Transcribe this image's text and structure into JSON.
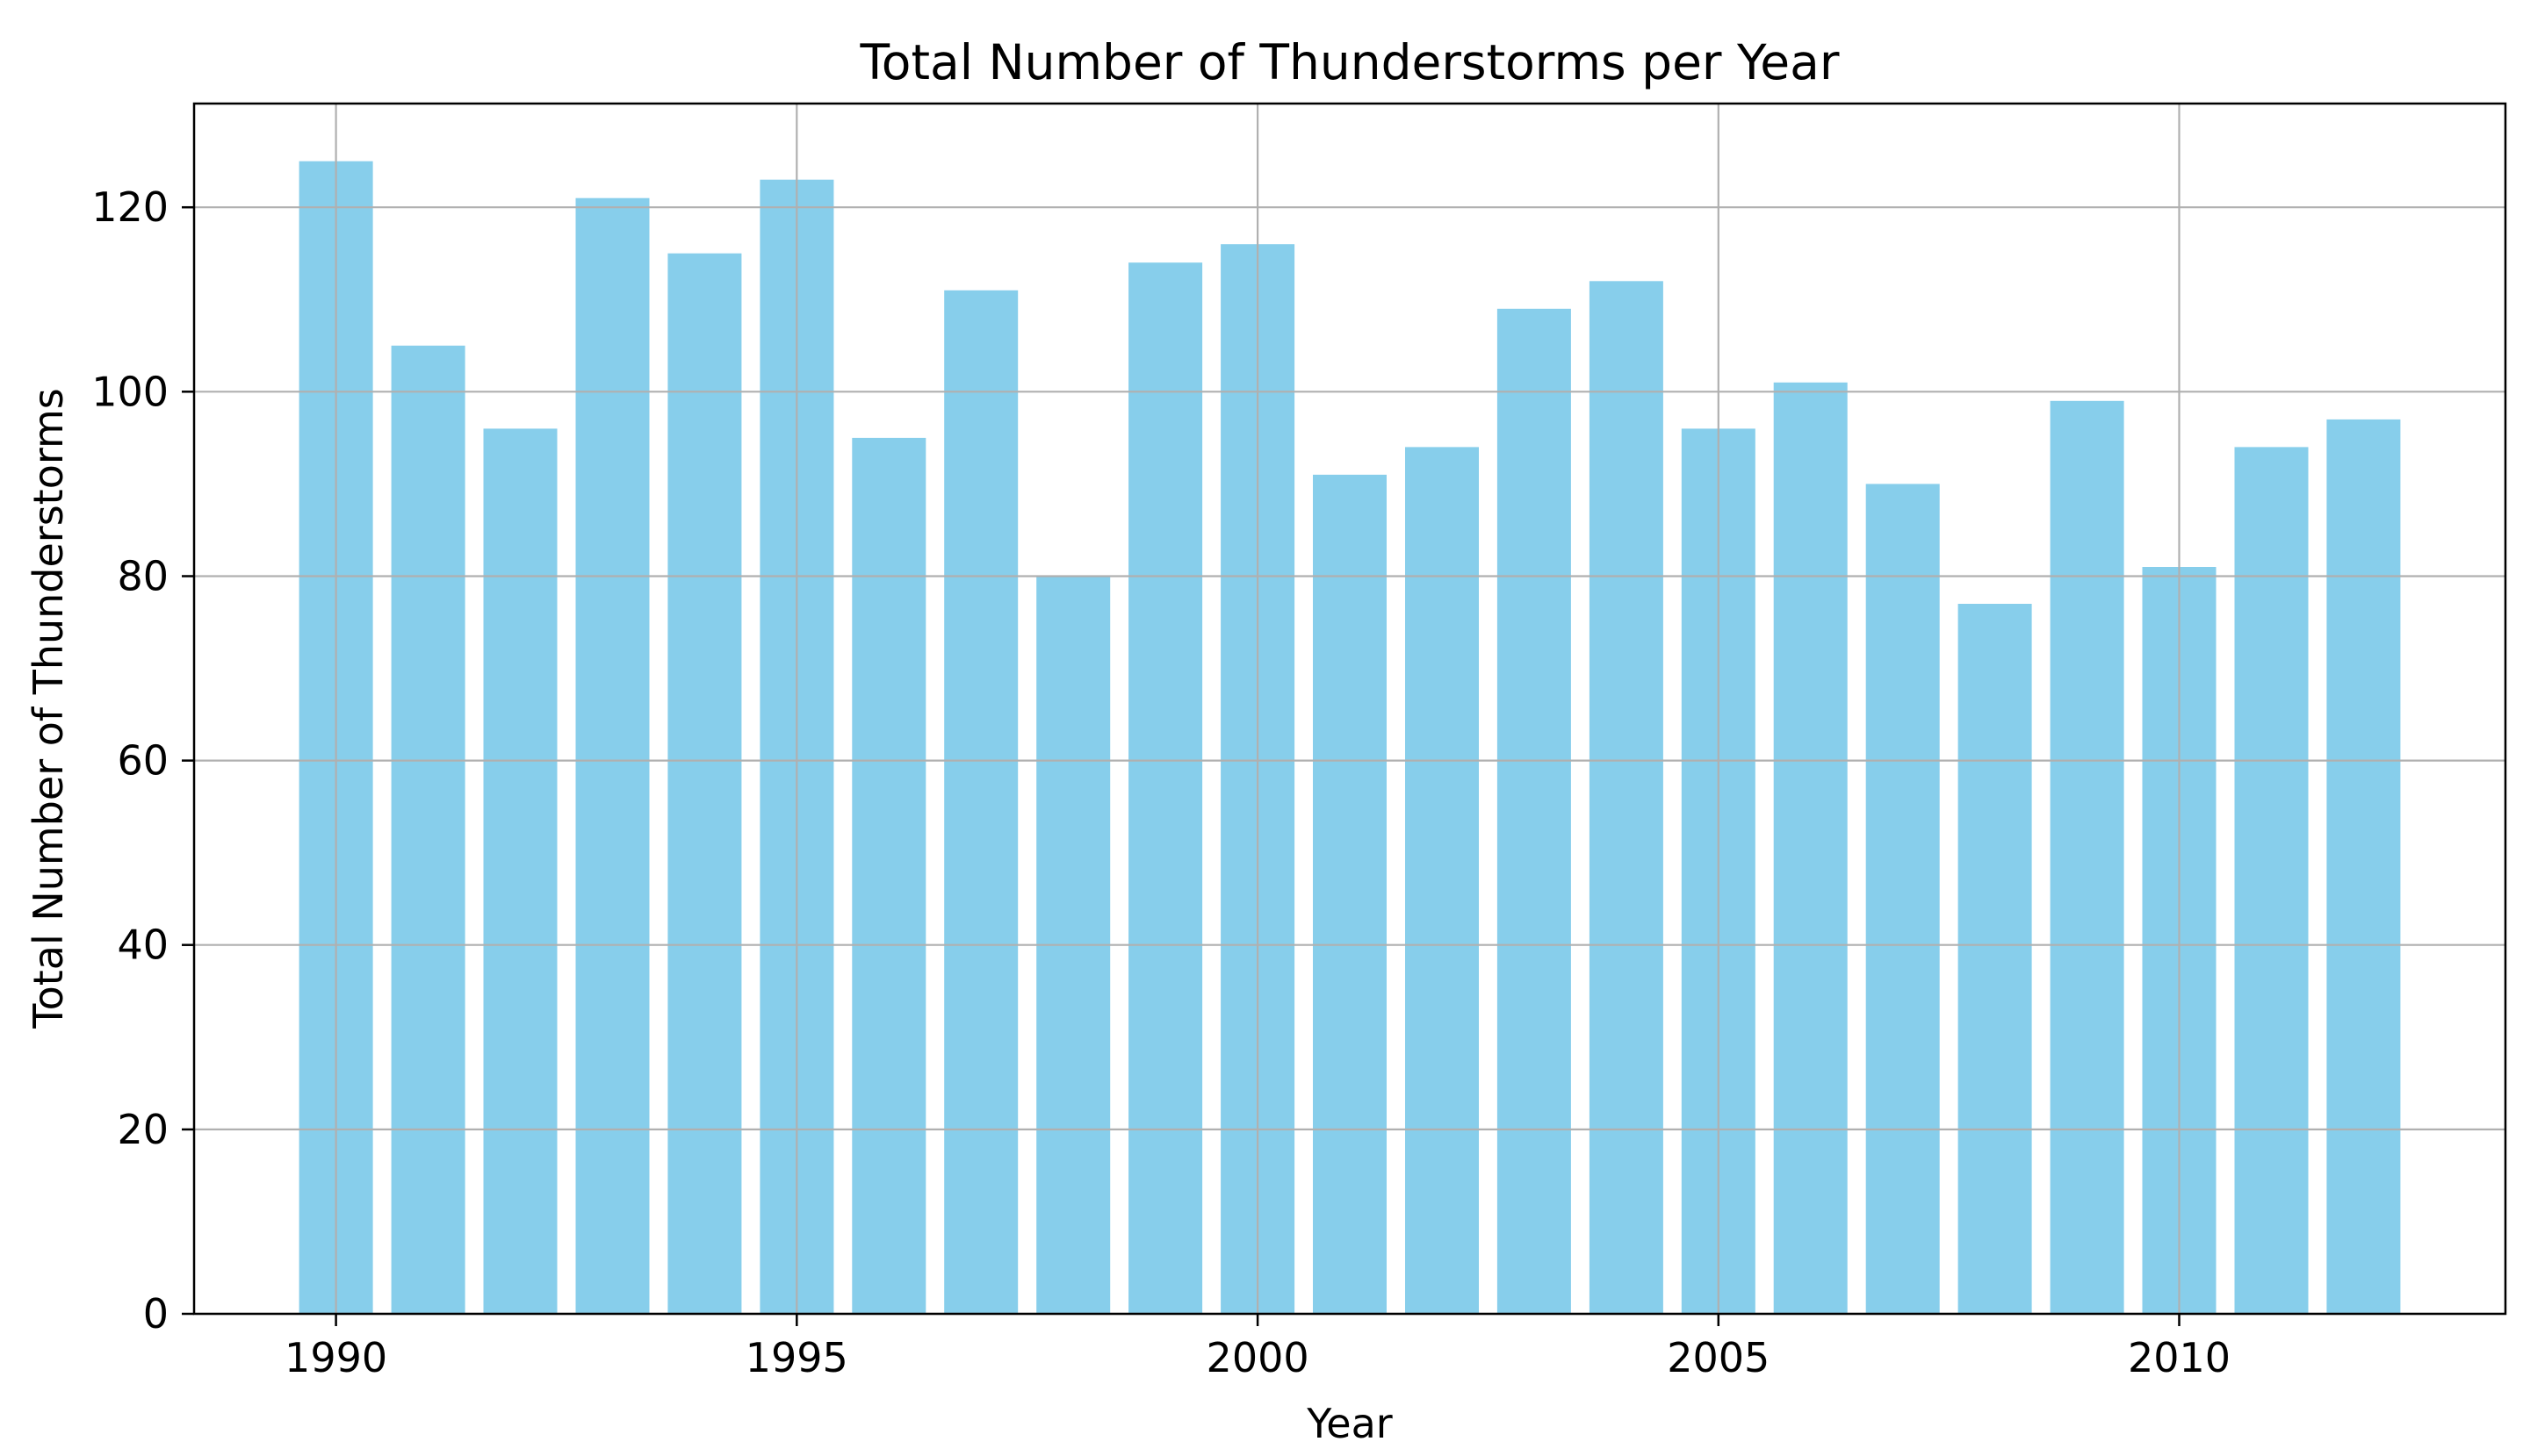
{
  "chart_data": {
    "type": "bar",
    "title": "Total Number of Thunderstorms per Year",
    "xlabel": "Year",
    "ylabel": "Total Number of Thunderstorms",
    "categories": [
      1990,
      1991,
      1992,
      1993,
      1994,
      1995,
      1996,
      1997,
      1998,
      1999,
      2000,
      2001,
      2002,
      2003,
      2004,
      2005,
      2006,
      2007,
      2008,
      2009,
      2010,
      2011,
      2012
    ],
    "values": [
      125,
      105,
      96,
      121,
      115,
      123,
      95,
      111,
      80,
      114,
      116,
      91,
      94,
      109,
      112,
      96,
      101,
      90,
      77,
      99,
      81,
      94,
      97
    ],
    "xticks": [
      1990,
      1995,
      2000,
      2005,
      2010
    ],
    "yticks": [
      0,
      20,
      40,
      60,
      80,
      100,
      120
    ],
    "xlim": [
      1988.46,
      2013.54
    ],
    "ylim": [
      0,
      131.25
    ],
    "bar_width_units": 0.8,
    "bar_color": "#87CEEB",
    "grid_color": "#b0b0b0",
    "axis_color": "#000000",
    "grid": true,
    "grid_above_bars": true,
    "legend": null
  }
}
